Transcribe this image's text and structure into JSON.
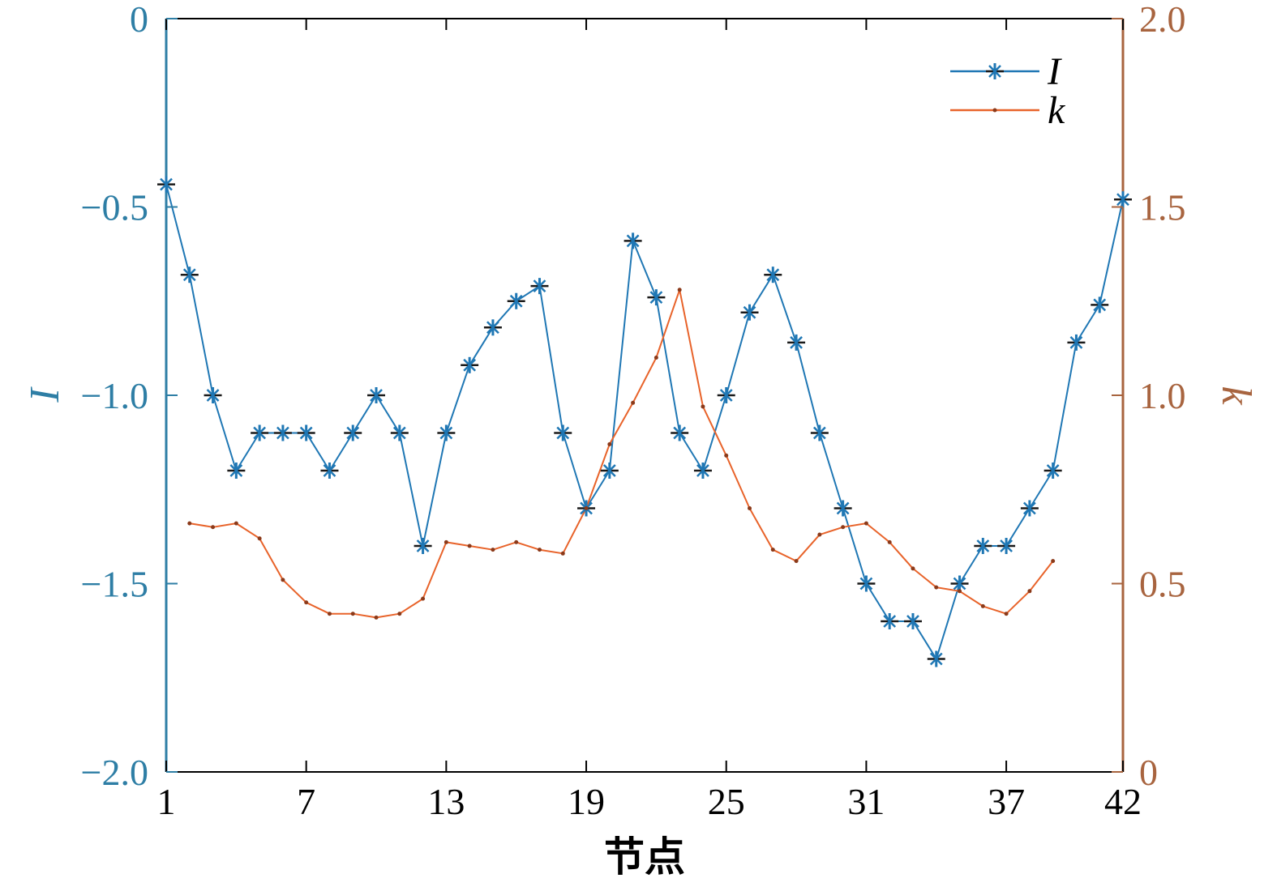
{
  "chart_data": {
    "type": "line",
    "title": "",
    "xlabel": "节点",
    "ylabel_left": "I",
    "ylabel_right": "k",
    "x_ticks": [
      1,
      7,
      13,
      19,
      25,
      31,
      37,
      42
    ],
    "x_tick_labels": [
      "1",
      "7",
      "13",
      "19",
      "25",
      "31",
      "37",
      "42"
    ],
    "xlim": [
      1,
      42
    ],
    "ylim_left": [
      -2.0,
      0
    ],
    "y_ticks_left": [
      0,
      -0.5,
      -1.0,
      -1.5,
      -2.0
    ],
    "y_tick_labels_left": [
      "0",
      "−0.5",
      "−1.0",
      "−1.5",
      "−2.0"
    ],
    "ylim_right": [
      0,
      2.0
    ],
    "y_ticks_right": [
      2.0,
      1.5,
      1.0,
      0.5,
      0
    ],
    "y_tick_labels_right": [
      "2.0",
      "1.5",
      "1.0",
      "0.5",
      "0"
    ],
    "grid": false,
    "legend_position": "top-right",
    "series": [
      {
        "name": "I",
        "axis": "left",
        "color": "#1f77b4",
        "marker": "star",
        "x": [
          1,
          2,
          3,
          4,
          5,
          6,
          7,
          8,
          9,
          10,
          11,
          12,
          13,
          14,
          15,
          16,
          17,
          18,
          19,
          20,
          21,
          22,
          23,
          24,
          25,
          26,
          27,
          28,
          29,
          30,
          31,
          32,
          33,
          34,
          35,
          36,
          37,
          38,
          39,
          40,
          41,
          42
        ],
        "values": [
          -0.44,
          -0.68,
          -1.0,
          -1.2,
          -1.1,
          -1.1,
          -1.1,
          -1.2,
          -1.1,
          -1.0,
          -1.1,
          -1.4,
          -1.1,
          -0.92,
          -0.82,
          -0.75,
          -0.71,
          -1.1,
          -1.3,
          -1.2,
          -0.59,
          -0.74,
          -1.1,
          -1.2,
          -1.0,
          -0.78,
          -0.68,
          -0.86,
          -1.1,
          -1.3,
          -1.5,
          -1.6,
          -1.6,
          -1.7,
          -1.5,
          -1.4,
          -1.4,
          -1.3,
          -1.2,
          -0.86,
          -0.76,
          -0.48
        ]
      },
      {
        "name": "k",
        "axis": "right",
        "color": "#e8632a",
        "marker": "dot",
        "x": [
          2,
          3,
          4,
          5,
          6,
          7,
          8,
          9,
          10,
          11,
          12,
          13,
          14,
          15,
          16,
          17,
          18,
          19,
          20,
          21,
          22,
          23,
          24,
          25,
          26,
          27,
          28,
          29,
          30,
          31,
          32,
          33,
          34,
          35,
          36,
          37,
          38,
          39
        ],
        "values": [
          0.66,
          0.65,
          0.66,
          0.62,
          0.51,
          0.45,
          0.42,
          0.42,
          0.41,
          0.42,
          0.46,
          0.61,
          0.6,
          0.59,
          0.61,
          0.59,
          0.58,
          0.7,
          0.87,
          0.98,
          1.1,
          1.28,
          0.97,
          0.84,
          0.7,
          0.59,
          0.56,
          0.63,
          0.65,
          0.66,
          0.61,
          0.54,
          0.49,
          0.48,
          0.44,
          0.42,
          0.48,
          0.56
        ]
      }
    ],
    "axis_colors": {
      "left": "#2e7ea5",
      "right": "#a8643f"
    }
  }
}
